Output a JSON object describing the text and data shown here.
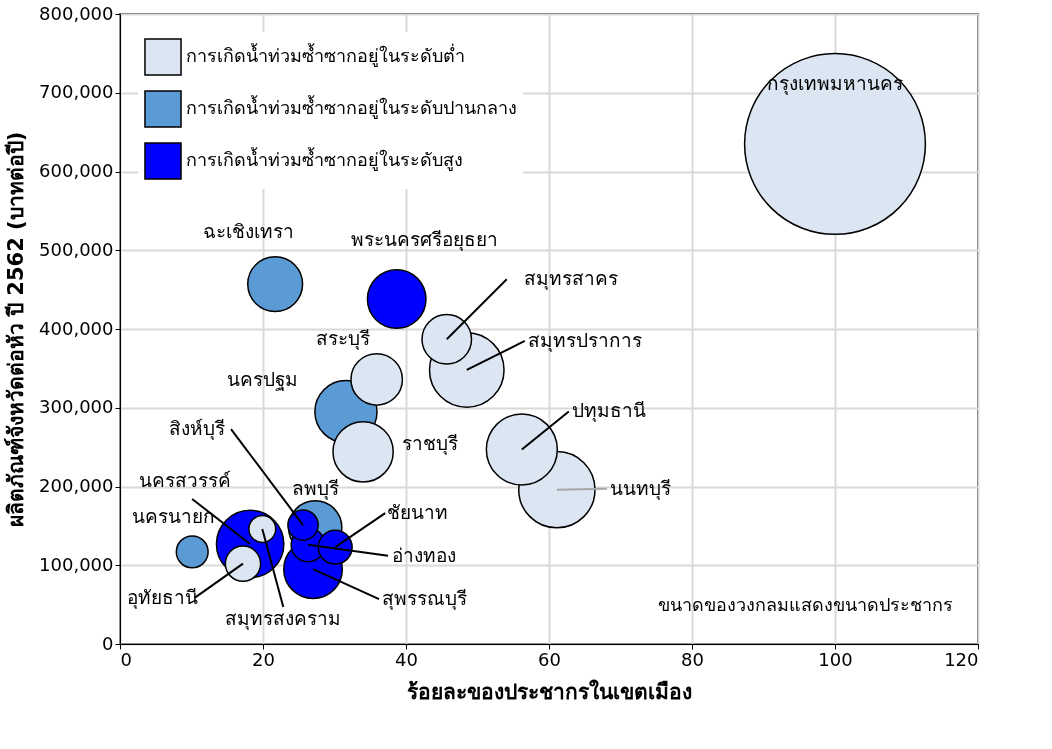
{
  "chart_data": {
    "type": "bubble",
    "xlabel": "ร้อยละของประชากรในเขตเมือง",
    "ylabel": "ผลิตภัณฑ์จังหวัดต่อหัว ปี 2562 (บาทต่อปี)",
    "xlim": [
      0,
      120
    ],
    "xticks": [
      0,
      20,
      40,
      60,
      80,
      100,
      120
    ],
    "ylim": [
      0,
      800000
    ],
    "yticks": [
      {
        "value": 0,
        "label": "0"
      },
      {
        "value": 100000,
        "label": "100,000"
      },
      {
        "value": 200000,
        "label": "200,000"
      },
      {
        "value": 300000,
        "label": "300,000"
      },
      {
        "value": 400000,
        "label": "400,000"
      },
      {
        "value": 500000,
        "label": "500,000"
      },
      {
        "value": 600000,
        "label": "600,000"
      },
      {
        "value": 700000,
        "label": "700,000"
      },
      {
        "value": 800000,
        "label": "800,000"
      }
    ],
    "grid": true,
    "legend": "top left",
    "series": [
      {
        "name": "การเกิดน้ำท่วมซ้ำซากอยู่ในระดับต่ำ",
        "color": "#dce6f2",
        "x": [
          100,
          45.7,
          48.5,
          35.9,
          34.0,
          56.2,
          61.1,
          19.9,
          17.2
        ],
        "values": [
          635000,
          387000,
          348000,
          336000,
          244000,
          247000,
          196000,
          146000,
          102000
        ],
        "sizes": [
          1,
          0.075,
          0.17,
          0.081,
          0.111,
          0.154,
          0.178,
          0.022,
          0.038
        ]
      },
      {
        "name": "การเกิดน้ำท่วมซ้ำซากอยู่ในระดับปานกลาง",
        "color": "#5b9bd5",
        "x": [
          21.7,
          31.6,
          10.1,
          27.3
        ],
        "values": [
          457000,
          295000,
          117000,
          148000
        ],
        "sizes": [
          0.092,
          0.118,
          0.031,
          0.087
        ]
      },
      {
        "name": "การเกิดน้ำท่วมซ้ำซากอยู่ในระดับสูง",
        "color": "#0000ff",
        "x": [
          38.7,
          18.2,
          25.6,
          27.0,
          26.3,
          30.1
        ],
        "values": [
          438000,
          127000,
          151000,
          95000,
          126000,
          123000
        ],
        "sizes": [
          0.105,
          0.139,
          0.028,
          0.105,
          0.035,
          0.035
        ]
      }
    ],
    "annotations": [
      {
        "text": "กรุงเทพมหานคร",
        "x": 100,
        "y": 635000
      },
      {
        "text": "สมุทรสาคร",
        "x": 45.7,
        "y": 387000
      },
      {
        "text": "สมุทรปราการ",
        "x": 48.5,
        "y": 348000
      },
      {
        "text": "สระบุรี",
        "x": 35.9,
        "y": 336000
      },
      {
        "text": "ราชบุรี",
        "x": 34.0,
        "y": 244000
      },
      {
        "text": "ปทุมธานี",
        "x": 56.2,
        "y": 247000
      },
      {
        "text": "นนทบุรี",
        "x": 61.1,
        "y": 196000
      },
      {
        "text": "สมุทรสงคราม",
        "x": 19.9,
        "y": 146000
      },
      {
        "text": "อุทัยธานี",
        "x": 17.2,
        "y": 102000
      },
      {
        "text": "ฉะเชิงเทรา",
        "x": 21.7,
        "y": 457000
      },
      {
        "text": "นครปฐม",
        "x": 31.6,
        "y": 295000
      },
      {
        "text": "นครนายก",
        "x": 10.1,
        "y": 117000
      },
      {
        "text": "ลพบุรี",
        "x": 27.3,
        "y": 148000
      },
      {
        "text": "พระนครศรีอยุธยา",
        "x": 38.7,
        "y": 438000
      },
      {
        "text": "นครสวรรค์",
        "x": 18.2,
        "y": 127000
      },
      {
        "text": "สิงห์บุรี",
        "x": 25.6,
        "y": 151000
      },
      {
        "text": "สุพรรณบุรี",
        "x": 27.0,
        "y": 95000
      },
      {
        "text": "อ่างทอง",
        "x": 26.3,
        "y": 126000
      },
      {
        "text": "ชัยนาท",
        "x": 30.1,
        "y": 123000
      },
      "ขนาดของวงกลมแสดงขนาดประชากร"
    ]
  }
}
